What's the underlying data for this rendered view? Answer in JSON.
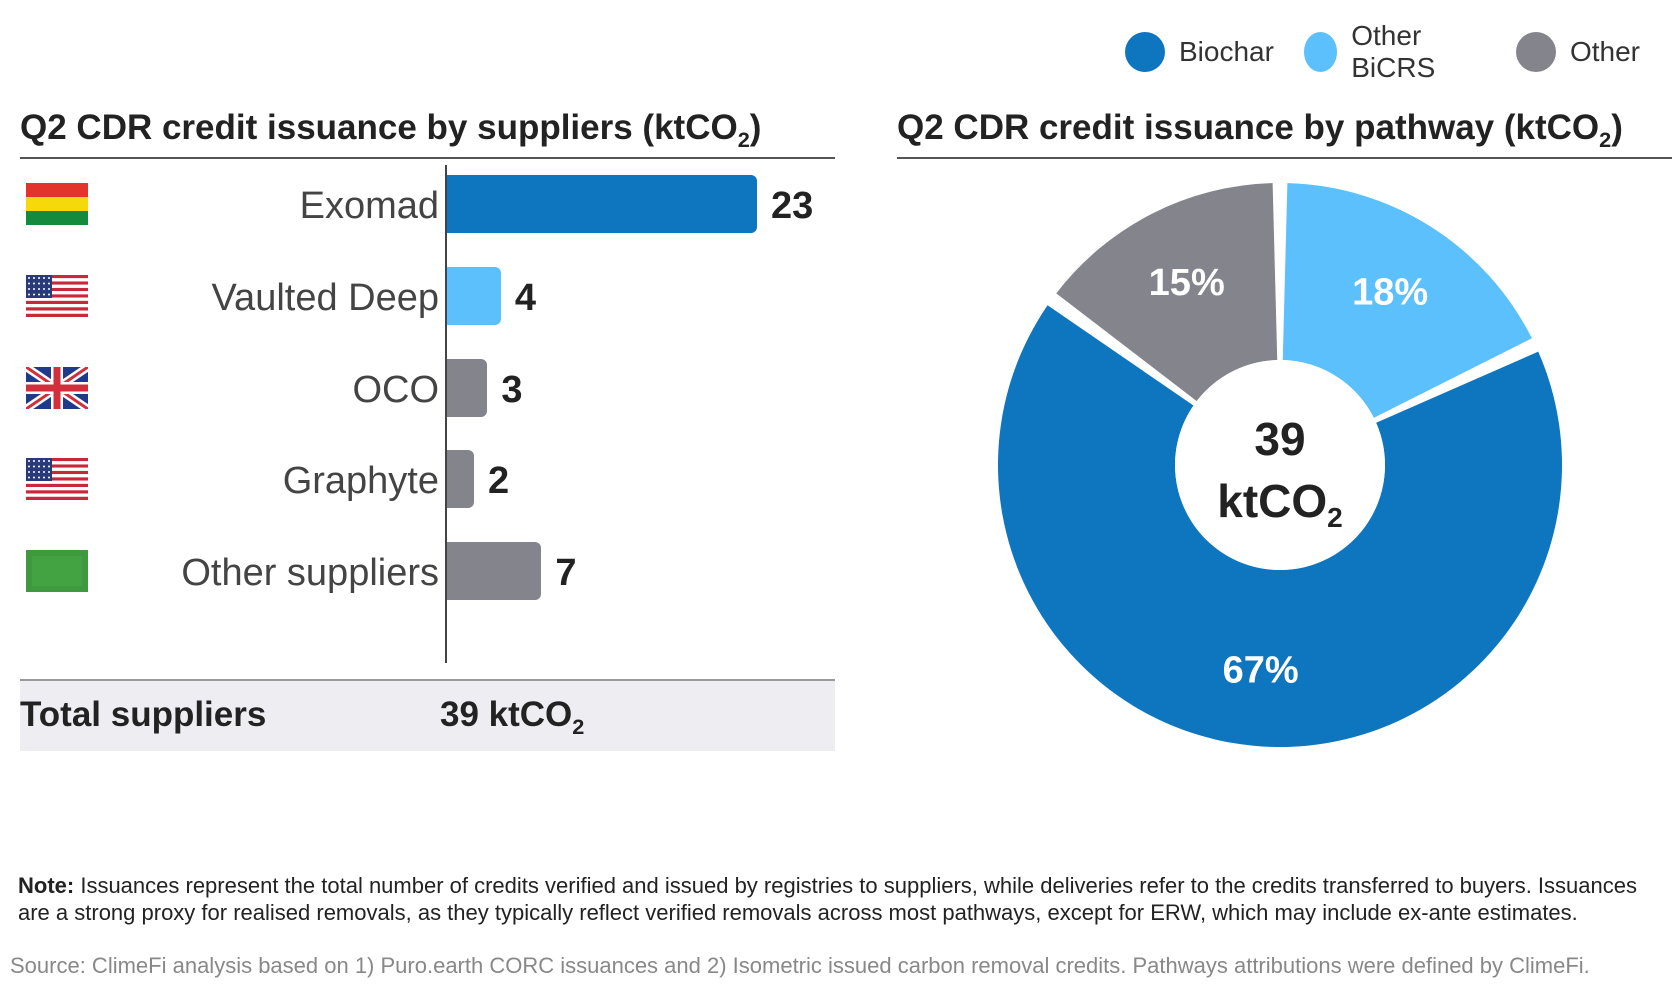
{
  "legend": [
    {
      "label": "Biochar",
      "color": "#0e75bf"
    },
    {
      "label": "Other BiCRS",
      "color": "#5bc0fb"
    },
    {
      "label": "Other",
      "color": "#84848c"
    }
  ],
  "left_panel": {
    "title": "Q2 CDR credit issuance by suppliers (ktCO",
    "title_sub": "2",
    "title_end": ")",
    "total_label": "Total suppliers",
    "total_value": "39 ktCO",
    "total_value_sub": "2"
  },
  "right_panel": {
    "title": "Q2 CDR credit issuance by pathway (ktCO",
    "title_sub": "2",
    "title_end": ")",
    "center_value": "39",
    "center_unit": "ktCO",
    "center_unit_sub": "2"
  },
  "chart_data": [
    {
      "type": "bar",
      "orientation": "horizontal",
      "title": "Q2 CDR credit issuance by suppliers (ktCO2)",
      "categories": [
        "Exomad",
        "Vaulted Deep",
        "OCO",
        "Graphyte",
        "Other suppliers"
      ],
      "values": [
        23,
        4,
        3,
        2,
        7
      ],
      "value_labels": [
        "23",
        "4",
        "3",
        "2",
        "7"
      ],
      "bar_colors": [
        "#0e75bf",
        "#5bc0fb",
        "#84848c",
        "#84848c",
        "#84848c"
      ],
      "flags": [
        "bolivia-flag",
        "us-flag",
        "uk-flag",
        "us-flag",
        "generic-green-flag"
      ],
      "xlim": [
        0,
        25
      ]
    },
    {
      "type": "pie",
      "donut": true,
      "title": "Q2 CDR credit issuance by pathway (ktCO2)",
      "slices": [
        {
          "name": "Other BiCRS",
          "percent": 18,
          "label": "18%",
          "color": "#5bc0fb"
        },
        {
          "name": "Biochar",
          "percent": 67,
          "label": "67%",
          "color": "#0e75bf"
        },
        {
          "name": "Other",
          "percent": 15,
          "label": "15%",
          "color": "#84848c"
        }
      ]
    }
  ],
  "note": {
    "prefix": "Note:",
    "text": " Issuances represent the total number of credits verified and issued by registries to suppliers, while deliveries refer to the credits transferred to buyers. Issuances are a strong proxy for realised removals, as they typically reflect verified removals across most pathways, except for ERW, which may include ex-ante estimates."
  },
  "source": "Source: ClimeFi analysis based on 1) Puro.earth CORC issuances and 2) Isometric issued carbon removal credits. Pathways attributions were defined by ClimeFi."
}
